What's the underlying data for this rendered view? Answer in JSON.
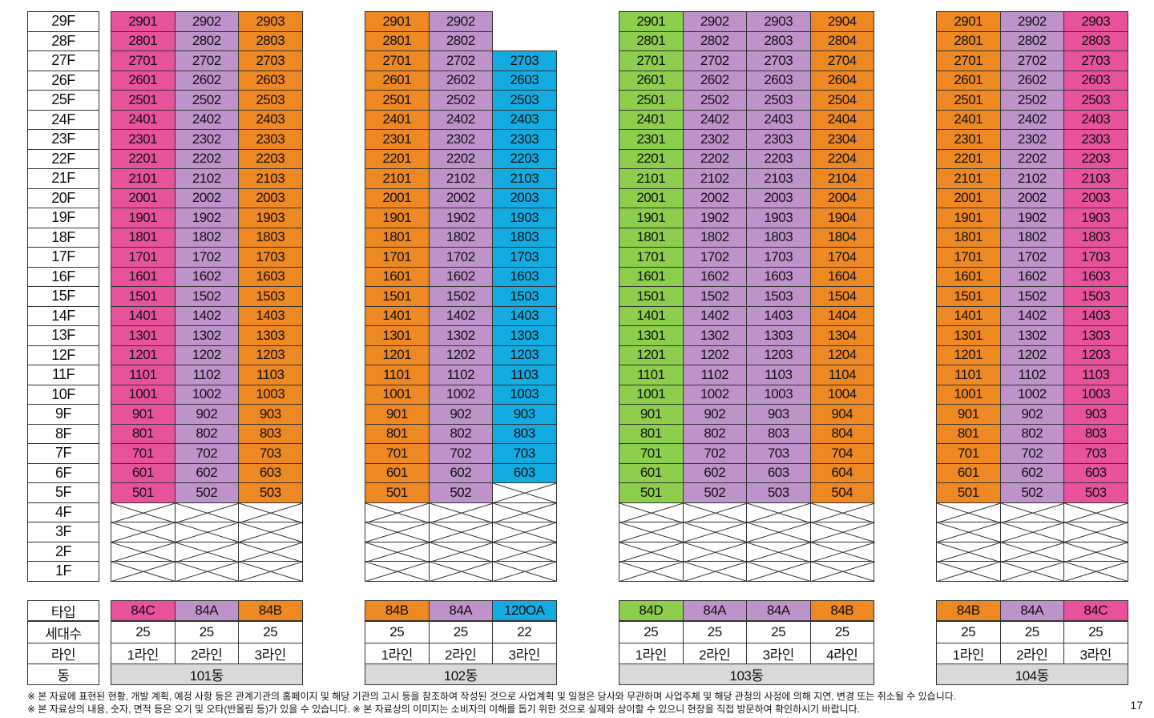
{
  "colors": {
    "pink": "#e8519c",
    "purple": "#be93c9",
    "orange": "#ee8822",
    "blue": "#12ace2",
    "green": "#8dce4d",
    "grey": "#d9d9d9"
  },
  "floors": [
    "29F",
    "28F",
    "27F",
    "26F",
    "25F",
    "24F",
    "23F",
    "22F",
    "21F",
    "20F",
    "19F",
    "18F",
    "17F",
    "16F",
    "15F",
    "14F",
    "13F",
    "12F",
    "11F",
    "10F",
    "9F",
    "8F",
    "7F",
    "6F",
    "5F",
    "4F",
    "3F",
    "2F",
    "1F"
  ],
  "row_labels": {
    "type": "타입",
    "households": "세대수",
    "line": "라인",
    "dong": "동"
  },
  "buildings": [
    {
      "dong": "101동",
      "lines": [
        {
          "color": "pink",
          "top": 29,
          "type": "84C",
          "households": "25",
          "line": "1라인"
        },
        {
          "color": "purple",
          "top": 29,
          "type": "84A",
          "households": "25",
          "line": "2라인"
        },
        {
          "color": "orange",
          "top": 29,
          "type": "84B",
          "households": "25",
          "line": "3라인"
        }
      ]
    },
    {
      "dong": "102동",
      "lines": [
        {
          "color": "orange",
          "top": 29,
          "type": "84B",
          "households": "25",
          "line": "1라인"
        },
        {
          "color": "purple",
          "top": 29,
          "type": "84A",
          "households": "25",
          "line": "2라인"
        },
        {
          "color": "blue",
          "top": 27,
          "bottom": 6,
          "type": "120OA",
          "households": "22",
          "line": "3라인"
        }
      ]
    },
    {
      "dong": "103동",
      "lines": [
        {
          "color": "green",
          "top": 29,
          "bottom_green": "",
          "type": "84D",
          "households": "25",
          "line": "1라인"
        },
        {
          "color": "purple",
          "top": 29,
          "type": "84A",
          "households": "25",
          "line": "2라인"
        },
        {
          "color": "purple",
          "top": 29,
          "type": "84A",
          "households": "25",
          "line": "3라인"
        },
        {
          "color": "orange",
          "top": 29,
          "type": "84B",
          "households": "25",
          "line": "4라인"
        }
      ]
    },
    {
      "dong": "104동",
      "lines": [
        {
          "color": "orange",
          "top": 29,
          "type": "84B",
          "households": "25",
          "line": "1라인"
        },
        {
          "color": "purple",
          "top": 29,
          "type": "84A",
          "households": "25",
          "line": "2라인"
        },
        {
          "color": "pink",
          "top": 29,
          "type": "84C",
          "households": "25",
          "line": "3라인"
        }
      ]
    }
  ],
  "notes": [
    "※ 본 자료에 표현된 현황, 개발 계획, 예정 사항 등은 관계기관의 홈페이지 및 해당 기관의 고시 등을 참조하여 작성된 것으로 사업계획 및 일정은 당사와 무관하며 사업주체 및 해당 관청의 사정에 의해 지연, 변경 또는 취소될 수 있습니다.",
    "※ 본 자료상의 내용, 숫자, 면적 등은 오기 및 오타(반올림 등)가 있을 수 있습니다. ※ 본 자료상의 이미지는 소비자의 이해를 돕기 위한 것으로 실제와 상이할 수 있으니 현장을 직접 방문하여 확인하시기 바랍니다."
  ],
  "page_number": "17"
}
